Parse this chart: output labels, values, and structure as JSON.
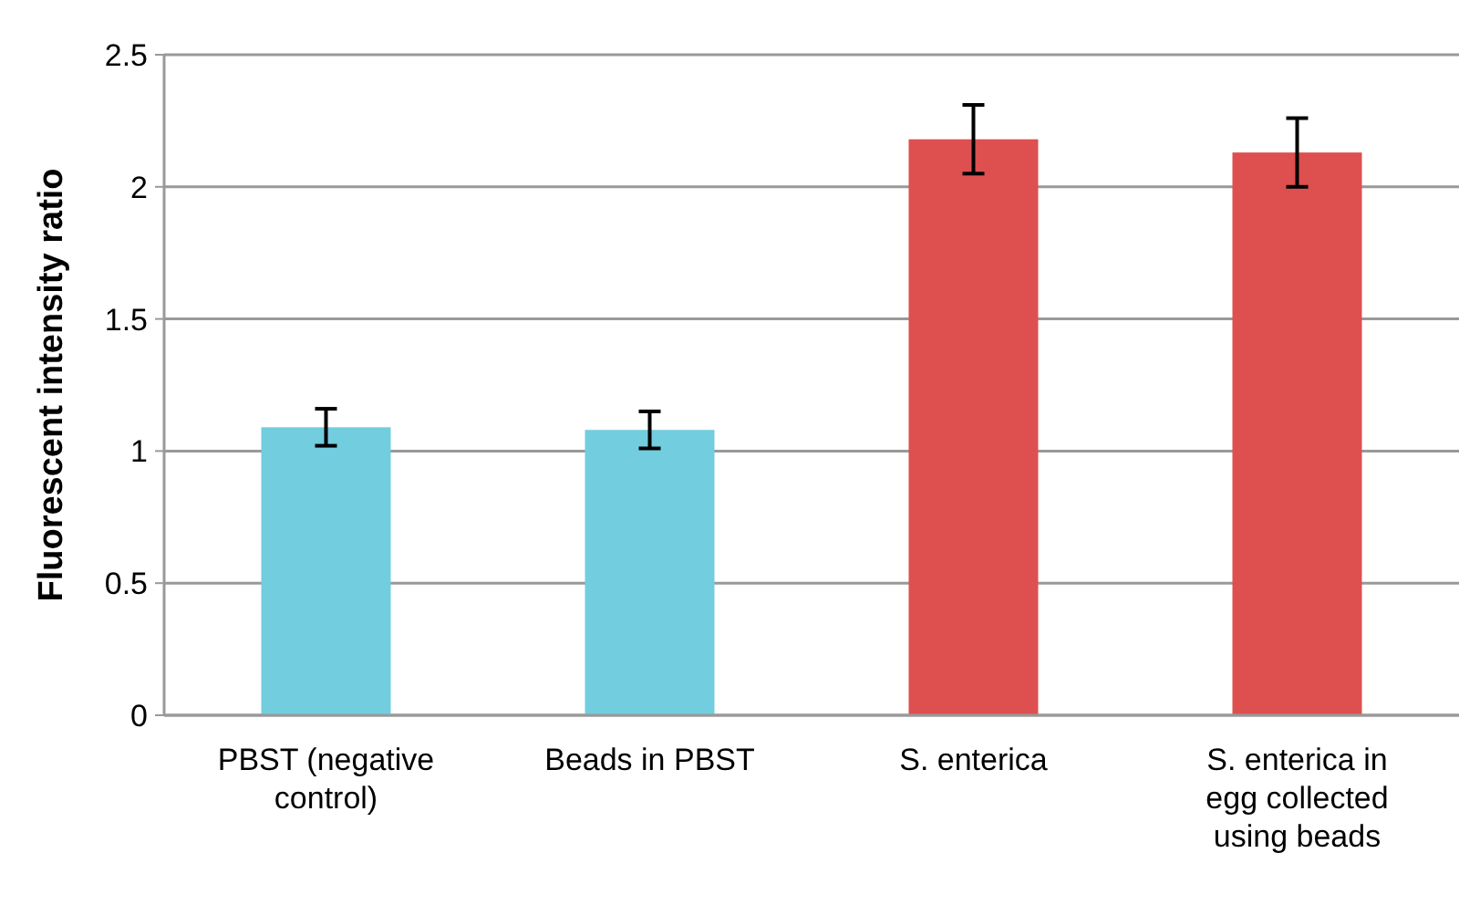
{
  "chart_data": {
    "type": "bar",
    "ylabel": "Fluorescent intensity ratio",
    "categories": [
      "PBST (negative control)",
      "Beads in PBST",
      "S. enterica",
      "S. enterica  in egg collected using beads"
    ],
    "values": [
      1.09,
      1.08,
      2.18,
      2.13
    ],
    "errors": [
      0.07,
      0.07,
      0.13,
      0.13
    ],
    "colors": [
      "#72cddf",
      "#72cddf",
      "#dd504f",
      "#dd504f"
    ],
    "ylim": [
      0,
      2.5
    ],
    "yticks": [
      0,
      0.5,
      1,
      1.5,
      2,
      2.5
    ],
    "grid": "y"
  }
}
